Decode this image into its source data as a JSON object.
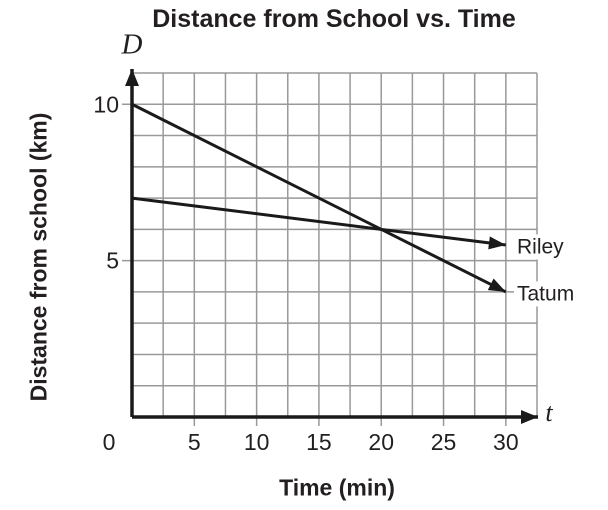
{
  "chart_data": {
    "type": "line",
    "title": "Distance from School vs. Time",
    "xlabel": "Time (min)",
    "ylabel": "Distance from school (km)",
    "x_axis_symbol": "t",
    "y_axis_symbol": "D",
    "xlim": [
      0,
      32.5
    ],
    "ylim": [
      0,
      11
    ],
    "x_ticks": [
      0,
      5,
      10,
      15,
      20,
      25,
      30
    ],
    "y_ticks": [
      5,
      10
    ],
    "x_grid_step": 2.5,
    "y_grid_step": 1,
    "grid": true,
    "series_label_position": "line-end",
    "series": [
      {
        "name": "Riley",
        "points": [
          [
            0,
            7
          ],
          [
            30,
            5.5
          ]
        ],
        "arrow_end": true
      },
      {
        "name": "Tatum",
        "points": [
          [
            0,
            10
          ],
          [
            30,
            4
          ]
        ],
        "arrow_end": true
      }
    ],
    "colors": {
      "line": "#1a1a1a",
      "grid": "#999999",
      "text": "#231f20",
      "background": "#ffffff"
    }
  }
}
